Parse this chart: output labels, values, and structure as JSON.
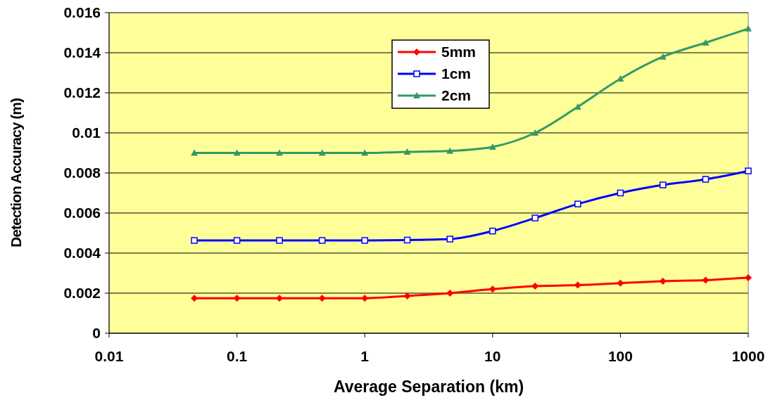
{
  "chart_data": {
    "type": "line",
    "xlabel": "Average Separation (km)",
    "ylabel": "Detection Accuracy (m)",
    "log": "x",
    "x": [
      0.0464,
      0.1,
      0.215,
      0.464,
      1,
      2.15,
      4.64,
      10,
      21.5,
      46.4,
      100,
      215,
      464,
      1000
    ],
    "xlim": [
      0.01,
      1000
    ],
    "xticks": [
      0.01,
      0.1,
      1,
      10,
      100,
      1000
    ],
    "ylim": [
      0,
      0.016
    ],
    "yticks": [
      0,
      0.002,
      0.004,
      0.006,
      0.008,
      0.01,
      0.012,
      0.014,
      0.016
    ],
    "grid": "y",
    "legend": "top",
    "line_style": "solid",
    "series": [
      {
        "name": "5mm",
        "color": "#ff0000",
        "marker": "diamond",
        "values": [
          0.00175,
          0.00175,
          0.00175,
          0.00175,
          0.00175,
          0.00186,
          0.002,
          0.0022,
          0.00235,
          0.0024,
          0.0025,
          0.0026,
          0.00265,
          0.00277
        ]
      },
      {
        "name": "1cm",
        "color": "#0000ff",
        "marker": "square",
        "values": [
          0.00463,
          0.00463,
          0.00463,
          0.00463,
          0.00463,
          0.00465,
          0.0047,
          0.0051,
          0.00575,
          0.00645,
          0.007,
          0.0074,
          0.00768,
          0.0081
        ]
      },
      {
        "name": "2cm",
        "color": "#339966",
        "marker": "triangle",
        "values": [
          0.009,
          0.009,
          0.009,
          0.009,
          0.009,
          0.00905,
          0.0091,
          0.0093,
          0.01,
          0.0113,
          0.0127,
          0.0138,
          0.0145,
          0.0152
        ]
      }
    ]
  }
}
